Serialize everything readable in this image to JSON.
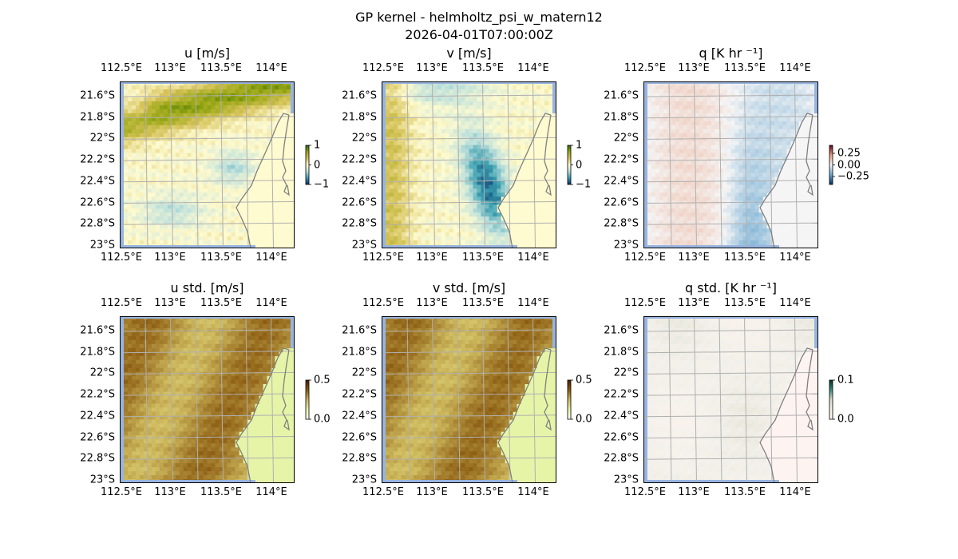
{
  "figure": {
    "title_line1": "GP kernel - helmholtz_psi_w_matern12",
    "title_line2": "2026-04-01T07:00:00Z"
  },
  "chart_data": [
    {
      "type": "heatmap",
      "title": "u [m/s]",
      "field": "u",
      "colorbar_ticks": [
        "1",
        "0",
        "−1"
      ],
      "clim": [
        -1,
        1
      ],
      "xlabel_ticks": [
        "112.5°E",
        "113°E",
        "113.5°E",
        "114°E"
      ],
      "ylabel_ticks": [
        "21.6°S",
        "21.8°S",
        "22°S",
        "22.2°S",
        "22.4°S",
        "22.6°S",
        "22.8°S",
        "23°S"
      ]
    },
    {
      "type": "heatmap",
      "title": "v [m/s]",
      "field": "v",
      "colorbar_ticks": [
        "1",
        "0",
        "−1"
      ],
      "clim": [
        -1,
        1
      ],
      "xlabel_ticks": [
        "112.5°E",
        "113°E",
        "113.5°E",
        "114°E"
      ],
      "ylabel_ticks": [
        "21.6°S",
        "21.8°S",
        "22°S",
        "22.2°S",
        "22.4°S",
        "22.6°S",
        "22.8°S",
        "23°S"
      ]
    },
    {
      "type": "heatmap",
      "title": "q [K hr ⁻¹]",
      "field": "q",
      "colorbar_ticks": [
        "0.25",
        "0.00",
        "−0.25"
      ],
      "clim": [
        -0.35,
        0.35
      ],
      "xlabel_ticks": [
        "112.5°E",
        "113°E",
        "113.5°E",
        "114°E"
      ],
      "ylabel_ticks": [
        "21.6°S",
        "21.8°S",
        "22°S",
        "22.2°S",
        "22.4°S",
        "22.6°S",
        "22.8°S",
        "23°S"
      ]
    },
    {
      "type": "heatmap",
      "title": "u std. [m/s]",
      "field": "ustd",
      "colorbar_ticks": [
        "0.5",
        "0.0"
      ],
      "clim": [
        0,
        0.5
      ],
      "xlabel_ticks": [
        "112.5°E",
        "113°E",
        "113.5°E",
        "114°E"
      ],
      "ylabel_ticks": [
        "21.6°S",
        "21.8°S",
        "22°S",
        "22.2°S",
        "22.4°S",
        "22.6°S",
        "22.8°S",
        "23°S"
      ]
    },
    {
      "type": "heatmap",
      "title": "v std. [m/s]",
      "field": "vstd",
      "colorbar_ticks": [
        "0.5",
        "0.0"
      ],
      "clim": [
        0,
        0.5
      ],
      "xlabel_ticks": [
        "112.5°E",
        "113°E",
        "113.5°E",
        "114°E"
      ],
      "ylabel_ticks": [
        "21.6°S",
        "21.8°S",
        "22°S",
        "22.2°S",
        "22.4°S",
        "22.6°S",
        "22.8°S",
        "23°S"
      ]
    },
    {
      "type": "heatmap",
      "title": "q std. [K hr ⁻¹]",
      "field": "qstd",
      "colorbar_ticks": [
        "0.1",
        "0.0"
      ],
      "clim": [
        0,
        0.15
      ],
      "xlabel_ticks": [
        "112.5°E",
        "113°E",
        "113.5°E",
        "114°E"
      ],
      "ylabel_ticks": [
        "21.6°S",
        "21.8°S",
        "22°S",
        "22.2°S",
        "22.4°S",
        "22.6°S",
        "22.8°S",
        "23°S"
      ]
    }
  ]
}
